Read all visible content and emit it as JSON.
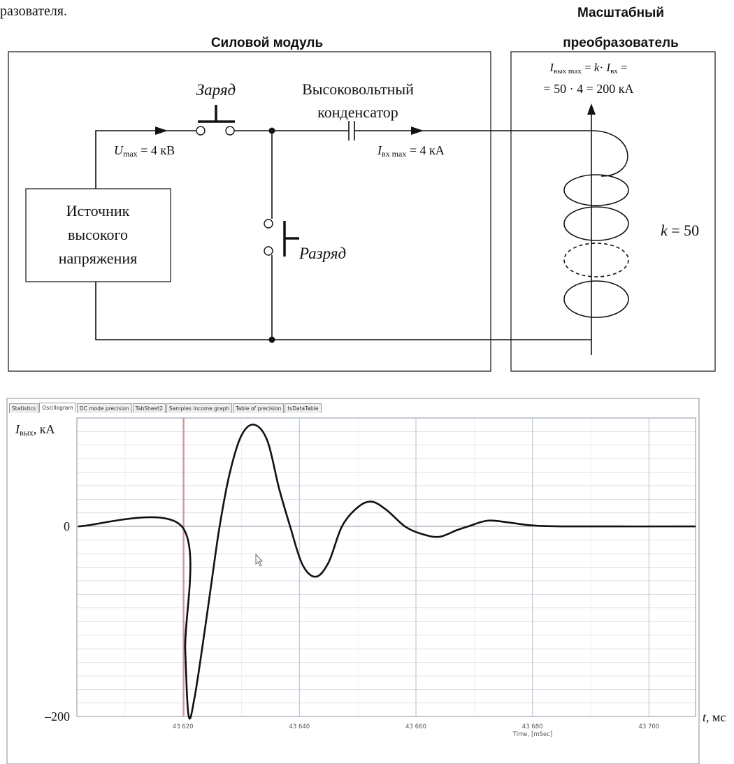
{
  "caption_fragment": "разователя.",
  "power_module": {
    "title": "Силовой модуль",
    "charge_label": "Заряд",
    "capacitor_label": [
      "Высоковольтный",
      "конденсатор"
    ],
    "voltage": [
      "U",
      "max",
      " = 4 кВ"
    ],
    "input_current": [
      "I",
      "вх max",
      " = 4 кА"
    ],
    "source_label": [
      "Источник",
      "высокого",
      "напряжения"
    ],
    "discharge_label": "Разряд"
  },
  "scale_converter": {
    "title": [
      "Масштабный",
      "преобразователь"
    ],
    "formula_line1": [
      "I",
      "вых max",
      " = ",
      "k",
      "· ",
      "I",
      "вх",
      " ="
    ],
    "formula_line2": "= 50 · 4 = 200 кА",
    "ratio": [
      "k",
      " = 50"
    ]
  },
  "oscillogram_tabs": [
    "Statistics",
    "Oscillogram",
    "DC mode precision",
    "TabSheet2",
    "Samples income graph",
    "Table of precision",
    "tsDataTable"
  ],
  "chart_data": {
    "type": "line",
    "y_label": [
      "I",
      "вых",
      ", кА"
    ],
    "x_label": "Time, [mSec]",
    "x_unit_label": [
      "t",
      ", мс"
    ],
    "color": "#111111",
    "x": [
      43602,
      43619.8,
      43620.4,
      43621,
      43622,
      43623.5,
      43625,
      43626.3,
      43628,
      43630,
      43632.2,
      43634.5,
      43636.5,
      43638.4,
      43640.5,
      43642.8,
      43645,
      43647.3,
      43650,
      43652.4,
      43655,
      43658.1,
      43661,
      43664,
      43667,
      43669,
      43672.3,
      43676,
      43680,
      43686,
      43708
    ],
    "values": [
      0,
      0,
      -130,
      -200,
      -180,
      -120,
      -55,
      0,
      55,
      95,
      107,
      90,
      40,
      0,
      -40,
      -53,
      -38,
      0,
      20,
      26,
      17,
      0,
      -8,
      -11,
      -4,
      0,
      6,
      4,
      1,
      0,
      0
    ],
    "xlim": [
      43601.8,
      43708
    ],
    "ylim": [
      -200,
      114
    ],
    "xticks": [
      {
        "value": 43620,
        "label": "43 620"
      },
      {
        "value": 43640,
        "label": "43 640"
      },
      {
        "value": 43660,
        "label": "43 660"
      },
      {
        "value": 43680,
        "label": "43 680"
      },
      {
        "value": 43700,
        "label": "43 700"
      }
    ],
    "yticks": [
      {
        "value": -200,
        "label": "–200"
      },
      0
    ],
    "grid": true
  }
}
